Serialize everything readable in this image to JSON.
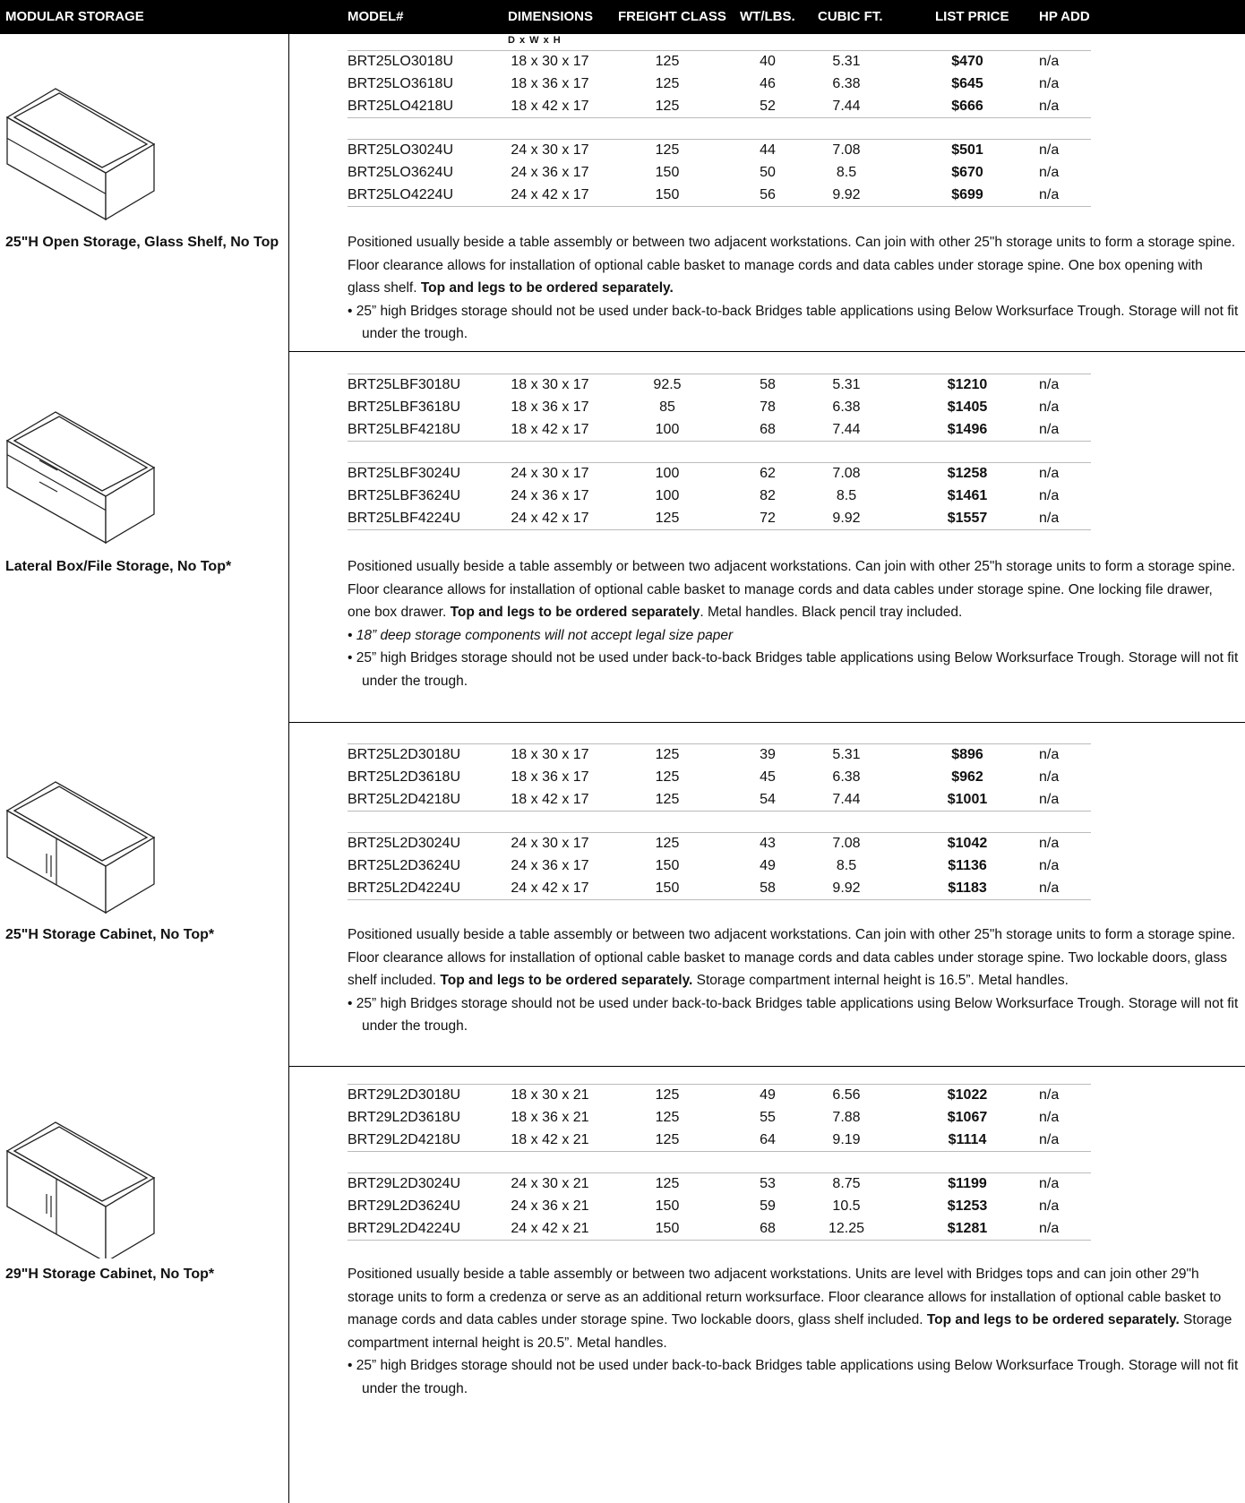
{
  "header": {
    "title": "MODULAR STORAGE",
    "columns": [
      "MODEL#",
      "DIMENSIONS",
      "FREIGHT CLASS",
      "WT/LBS.",
      "CUBIC FT.",
      "LIST PRICE",
      "HP ADD"
    ],
    "dimensions_note": "D x W x H"
  },
  "sections": [
    {
      "caption": "25\"H Open Storage, Glass Shelf, No Top",
      "groups": [
        [
          [
            "BRT25LO3018U",
            "18 x 30 x 17",
            125,
            40,
            5.31,
            "$470",
            "n/a"
          ],
          [
            "BRT25LO3618U",
            "18 x 36 x 17",
            125,
            46,
            6.38,
            "$645",
            "n/a"
          ],
          [
            "BRT25LO4218U",
            "18 x 42 x 17",
            125,
            52,
            7.44,
            "$666",
            "n/a"
          ]
        ],
        [
          [
            "BRT25LO3024U",
            "24 x 30 x 17",
            125,
            44,
            7.08,
            "$501",
            "n/a"
          ],
          [
            "BRT25LO3624U",
            "24 x 36 x 17",
            150,
            50,
            8.5,
            "$670",
            "n/a"
          ],
          [
            "BRT25LO4224U",
            "24 x 42 x 17",
            150,
            56,
            9.92,
            "$699",
            "n/a"
          ]
        ]
      ],
      "description": [
        {
          "text": "Positioned usually beside a table assembly or between two adjacent workstations.  Can join with other 25\"h storage units to form a storage spine. Floor clearance allows for installation of optional cable basket to manage cords and data cables under storage spine. One box opening with glass shelf. ",
          "bold": false
        },
        {
          "text": "Top and legs to be ordered separately.",
          "bold": true
        }
      ],
      "notes": [
        {
          "text": "• 25” high Bridges storage should not be used under back-to-back Bridges table applications using Below Worksurface Trough. Storage will not fit under the trough.",
          "italic": false
        }
      ]
    },
    {
      "caption": "Lateral Box/File Storage, No Top*",
      "groups": [
        [
          [
            "BRT25LBF3018U",
            "18 x 30 x 17",
            92.5,
            58,
            5.31,
            "$1210",
            "n/a"
          ],
          [
            "BRT25LBF3618U",
            "18 x 36 x 17",
            85,
            78,
            6.38,
            "$1405",
            "n/a"
          ],
          [
            "BRT25LBF4218U",
            "18 x 42 x 17",
            100,
            68,
            7.44,
            "$1496",
            "n/a"
          ]
        ],
        [
          [
            "BRT25LBF3024U",
            "24 x 30 x 17",
            100,
            62,
            7.08,
            "$1258",
            "n/a"
          ],
          [
            "BRT25LBF3624U",
            "24 x 36 x 17",
            100,
            82,
            8.5,
            "$1461",
            "n/a"
          ],
          [
            "BRT25LBF4224U",
            "24 x 42 x 17",
            125,
            72,
            9.92,
            "$1557",
            "n/a"
          ]
        ]
      ],
      "description": [
        {
          "text": "Positioned usually beside a table assembly or between two adjacent workstations.  Can join with other 25\"h storage units to form a storage spine. Floor clearance allows for installation of optional cable basket to manage cords and data cables under storage spine. One locking file drawer, one box drawer.  ",
          "bold": false
        },
        {
          "text": "Top and legs to be ordered separately",
          "bold": true
        },
        {
          "text": ". Metal handles. Black pencil tray included.",
          "bold": false
        }
      ],
      "notes": [
        {
          "text": "• 18” deep storage components will not accept legal size paper",
          "italic": true
        },
        {
          "text": "• 25” high Bridges storage should not be used under back-to-back Bridges table applications using Below Worksurface Trough. Storage will not fit under the trough.",
          "italic": false
        }
      ]
    },
    {
      "caption": "25\"H Storage Cabinet, No Top*",
      "groups": [
        [
          [
            "BRT25L2D3018U",
            "18 x 30 x 17",
            125,
            39,
            5.31,
            "$896",
            "n/a"
          ],
          [
            "BRT25L2D3618U",
            "18 x 36 x 17",
            125,
            45,
            6.38,
            "$962",
            "n/a"
          ],
          [
            "BRT25L2D4218U",
            "18 x 42 x 17",
            125,
            54,
            7.44,
            "$1001",
            "n/a"
          ]
        ],
        [
          [
            "BRT25L2D3024U",
            "24 x 30 x 17",
            125,
            43,
            7.08,
            "$1042",
            "n/a"
          ],
          [
            "BRT25L2D3624U",
            "24 x 36 x 17",
            150,
            49,
            8.5,
            "$1136",
            "n/a"
          ],
          [
            "BRT25L2D4224U",
            "24 x 42 x 17",
            150,
            58,
            9.92,
            "$1183",
            "n/a"
          ]
        ]
      ],
      "description": [
        {
          "text": "Positioned usually beside a table assembly or between two adjacent workstations.  Can join with other 25\"h storage units to form a storage spine. Floor clearance allows for installation of optional cable basket to manage cords and data cables under storage spine. Two lockable doors, glass shelf included. ",
          "bold": false
        },
        {
          "text": "Top and legs to be ordered separately.",
          "bold": true
        },
        {
          "text": " Storage compartment internal height is 16.5”.  Metal handles.",
          "bold": false
        }
      ],
      "notes": [
        {
          "text": "• 25” high Bridges storage should not be used under back-to-back Bridges table applications using Below Worksurface Trough. Storage will not fit under the trough.",
          "italic": false
        }
      ]
    },
    {
      "caption": "29\"H Storage Cabinet, No Top*",
      "groups": [
        [
          [
            "BRT29L2D3018U",
            "18 x 30 x 21",
            125,
            49,
            6.56,
            "$1022",
            "n/a"
          ],
          [
            "BRT29L2D3618U",
            "18 x 36 x 21",
            125,
            55,
            7.88,
            "$1067",
            "n/a"
          ],
          [
            "BRT29L2D4218U",
            "18 x 42 x 21",
            125,
            64,
            9.19,
            "$1114",
            "n/a"
          ]
        ],
        [
          [
            "BRT29L2D3024U",
            "24 x 30 x 21",
            125,
            53,
            8.75,
            "$1199",
            "n/a"
          ],
          [
            "BRT29L2D3624U",
            "24 x 36 x 21",
            150,
            59,
            10.5,
            "$1253",
            "n/a"
          ],
          [
            "BRT29L2D4224U",
            "24 x 42 x 21",
            150,
            68,
            12.25,
            "$1281",
            "n/a"
          ]
        ]
      ],
      "description": [
        {
          "text": "Positioned usually beside a table assembly or between two adjacent workstations.  Units are level with Bridges tops and can join other 29\"h storage units to form a credenza or serve as an additional return worksurface. Floor clearance allows for installation of optional cable basket to manage cords and data cables under storage spine. Two lockable doors, glass shelf included. ",
          "bold": false
        },
        {
          "text": "Top and legs to be ordered separately.",
          "bold": true
        },
        {
          "text": " Storage compartment internal height is 20.5”.  Metal handles.",
          "bold": false
        }
      ],
      "notes": [
        {
          "text": "• 25” high Bridges storage should not be used under back-to-back Bridges table applications using Below Worksurface Trough. Storage will not fit under the trough.",
          "italic": false
        }
      ]
    }
  ]
}
